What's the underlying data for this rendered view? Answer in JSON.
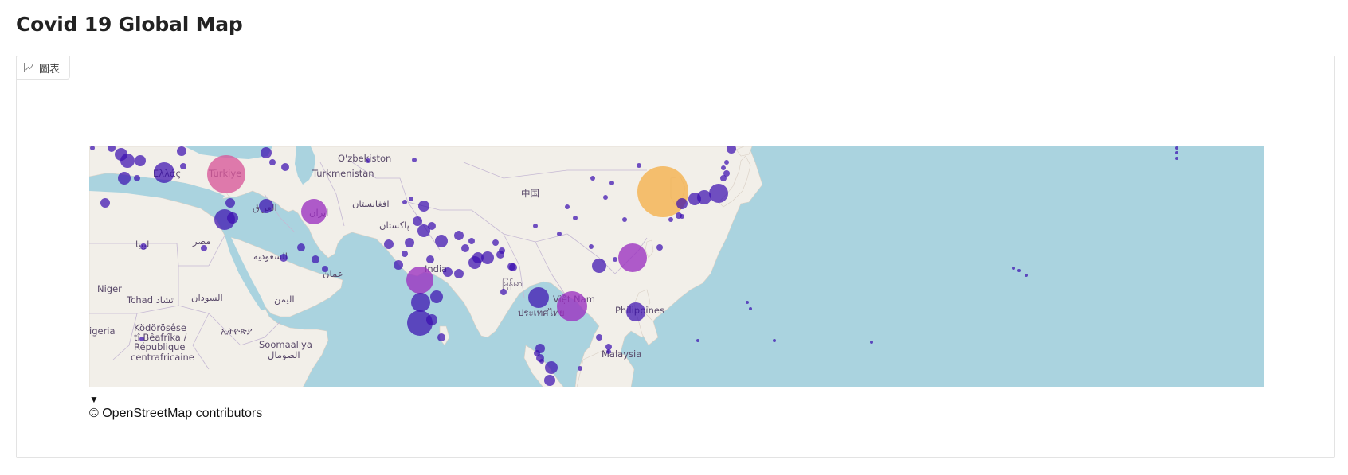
{
  "page": {
    "title": "Covid 19 Global Map"
  },
  "panel": {
    "tab_label": "圖表",
    "tab_icon": "chart-icon"
  },
  "map": {
    "attribution_toggle": "▼",
    "attribution": "© OpenStreetMap contributors",
    "colors": {
      "water": "#aad3df",
      "land": "#f2efe9",
      "border": "#b9a9c9",
      "bubble_low": "#3b0fb0",
      "bubble_mid": "#9b2fc0",
      "bubble_high": "#d8579a",
      "bubble_max": "#f5b04a"
    },
    "labels": [
      {
        "text": "O'zbekiston"
      },
      {
        "text": "Türkiye"
      },
      {
        "text": "Turkmenistan"
      },
      {
        "text": "中国"
      },
      {
        "text": "افغانستان"
      },
      {
        "text": "العراق"
      },
      {
        "text": "ایران"
      },
      {
        "text": "پاکستان"
      },
      {
        "text": "ليبيا"
      },
      {
        "text": "مصر"
      },
      {
        "text": "السعودية"
      },
      {
        "text": "India"
      },
      {
        "text": "عمان"
      },
      {
        "text": "Niger"
      },
      {
        "text": "Tchad تشاد"
      },
      {
        "text": "السودان"
      },
      {
        "text": "اليمن"
      },
      {
        "text": "မြန်မာ"
      },
      {
        "text": "Việt Nam"
      },
      {
        "text": "ประเทศไทย"
      },
      {
        "text": "Philippines"
      },
      {
        "text": "igeria"
      },
      {
        "text": "Ködörösêse"
      },
      {
        "text": "tî Bêafrîka /"
      },
      {
        "text": "République"
      },
      {
        "text": "centrafricaine"
      },
      {
        "text": "ኢትዮጵያ"
      },
      {
        "text": "Soomaaliya"
      },
      {
        "text": "الصومال"
      },
      {
        "text": "Malaysia"
      },
      {
        "text": "Ελλάς"
      }
    ]
  }
}
